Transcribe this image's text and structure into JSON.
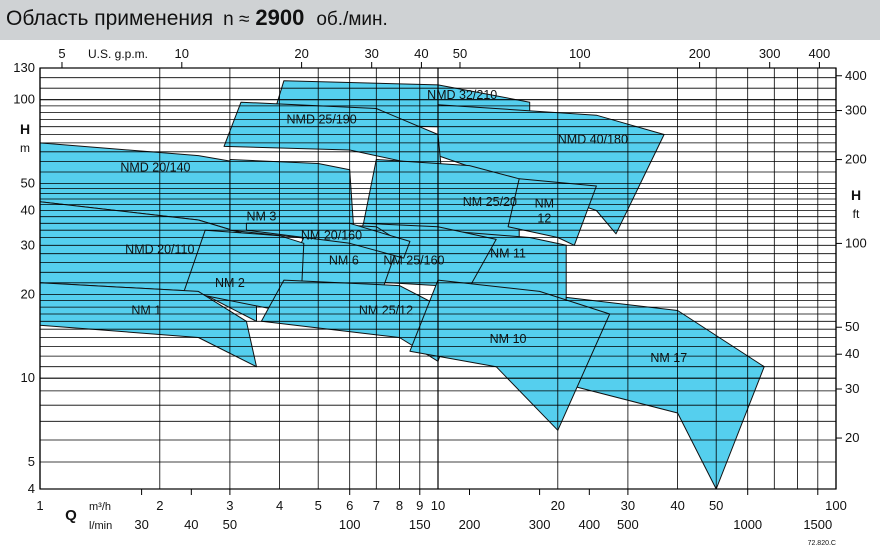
{
  "header": {
    "title": "Область применения",
    "speed_prefix": "n ≈",
    "speed_value": "2900",
    "speed_unit": "об./мин."
  },
  "colors": {
    "field_fill": "#55cfee",
    "field_stroke": "#111111",
    "header_bg": "#cfd2d4",
    "grid": "#000000"
  },
  "chart_data": {
    "type": "area",
    "title": "Область применения n ≈ 2900 об./мин.",
    "x_scale": "log",
    "y_scale": "log",
    "xlim_m3h": [
      1,
      100
    ],
    "ylim_m": [
      4,
      130
    ],
    "grid": true,
    "axes": {
      "bottom_m3h": {
        "label_symbol": "Q",
        "label_unit": "m³/h",
        "ticks": [
          1,
          2,
          3,
          4,
          5,
          6,
          7,
          8,
          9,
          10,
          20,
          30,
          40,
          50,
          100
        ]
      },
      "bottom_lmin": {
        "label_unit": "l/min",
        "ticks": [
          30,
          40,
          50,
          100,
          150,
          200,
          300,
          400,
          500,
          1000,
          1500
        ]
      },
      "top_gpm": {
        "label": "U.S. g.p.m.",
        "ticks": [
          5,
          10,
          20,
          30,
          40,
          50,
          100,
          200,
          300,
          400
        ]
      },
      "left_m": {
        "label_symbol": "H",
        "label_unit": "m",
        "ticks": [
          4,
          5,
          10,
          20,
          30,
          40,
          50,
          100,
          130
        ]
      },
      "right_ft": {
        "label_symbol": "H",
        "label_unit": "ft",
        "ticks": [
          20,
          30,
          40,
          50,
          100,
          200,
          300,
          400
        ]
      }
    },
    "series": [
      {
        "name": "NM 1",
        "label_at": [
          1.85,
          17.5
        ],
        "q_range_m3h": [
          1.0,
          3.5
        ],
        "h_top": [
          [
            1.0,
            22
          ],
          [
            2.5,
            20.5
          ],
          [
            3.3,
            16
          ]
        ],
        "h_bottom": [
          [
            1.0,
            15.5
          ],
          [
            2.5,
            14
          ],
          [
            3.5,
            11
          ]
        ]
      },
      {
        "name": "NM 2",
        "label_at": [
          3.0,
          22
        ],
        "q_range_m3h": [
          2.3,
          4.6
        ],
        "h_top": [
          [
            2.6,
            34
          ],
          [
            4.0,
            32.5
          ],
          [
            4.6,
            30.5
          ]
        ],
        "h_bottom": [
          [
            2.3,
            20.5
          ],
          [
            4.0,
            17.5
          ],
          [
            4.5,
            16
          ]
        ]
      },
      {
        "name": "NM 3",
        "label_at": [
          3.6,
          38
        ],
        "q_range_m3h": [
          3.0,
          6.0
        ],
        "h_top": [
          [
            3.0,
            61
          ],
          [
            5.0,
            59
          ],
          [
            6.0,
            56
          ]
        ],
        "h_bottom": [
          [
            3.0,
            34
          ],
          [
            5.5,
            31
          ],
          [
            6.2,
            28
          ]
        ]
      },
      {
        "name": "NMD 20/110",
        "label_at": [
          2.0,
          29
        ],
        "q_range_m3h": [
          1.0,
          3.5
        ],
        "h_top": [
          [
            1.0,
            43
          ],
          [
            2.5,
            37
          ],
          [
            3.5,
            32
          ]
        ],
        "h_bottom": [
          [
            1.0,
            22
          ],
          [
            2.5,
            20.5
          ],
          [
            3.5,
            16
          ]
        ]
      },
      {
        "name": "NMD 20/140",
        "label_at": [
          1.95,
          57
        ],
        "q_range_m3h": [
          1.0,
          3.5
        ],
        "h_top": [
          [
            1.0,
            70
          ],
          [
            2.5,
            63
          ],
          [
            3.5,
            58
          ]
        ],
        "h_bottom": [
          [
            1.0,
            43
          ],
          [
            2.5,
            37
          ],
          [
            3.5,
            32
          ]
        ]
      },
      {
        "name": "NMD 25/190",
        "label_at": [
          5.1,
          85
        ],
        "q_range_m3h": [
          2.9,
          10.2
        ],
        "h_top": [
          [
            3.2,
            98
          ],
          [
            7.0,
            93
          ],
          [
            10.0,
            75
          ]
        ],
        "h_bottom": [
          [
            2.9,
            68
          ],
          [
            6.0,
            66
          ],
          [
            10.2,
            56
          ]
        ]
      },
      {
        "name": "NMD 32/210",
        "label_at": [
          11.5,
          104
        ],
        "q_range_m3h": [
          4.0,
          17.0
        ],
        "h_top": [
          [
            4.1,
            117
          ],
          [
            10.0,
            113
          ],
          [
            17.0,
            98
          ]
        ],
        "h_bottom": [
          [
            3.8,
            82
          ],
          [
            10.0,
            80
          ],
          [
            17.0,
            72
          ]
        ]
      },
      {
        "name": "NMD 40/180",
        "label_at": [
          24.5,
          72
        ],
        "q_range_m3h": [
          10.0,
          37.0
        ],
        "h_top": [
          [
            10.0,
            96
          ],
          [
            25.0,
            88
          ],
          [
            37.0,
            75
          ]
        ],
        "h_bottom": [
          [
            10.0,
            63
          ],
          [
            25.0,
            40
          ],
          [
            28.0,
            33
          ]
        ]
      },
      {
        "name": "NM 20/160",
        "label_at": [
          5.4,
          32.5
        ],
        "q_range_m3h": [
          3.3,
          8.5
        ],
        "h_top": [
          [
            3.3,
            36
          ],
          [
            6.0,
            36
          ],
          [
            8.5,
            31
          ]
        ],
        "h_bottom": [
          [
            3.3,
            34
          ],
          [
            6.0,
            30.5
          ],
          [
            8.2,
            27
          ]
        ]
      },
      {
        "name": "NM 6",
        "label_at": [
          5.8,
          26.5
        ],
        "q_range_m3h": [
          4.0,
          8.0
        ],
        "h_top": [
          [
            4.8,
            36
          ],
          [
            7.0,
            35
          ],
          [
            8.0,
            31
          ]
        ],
        "h_bottom": [
          [
            4.0,
            21.5
          ],
          [
            6.0,
            20.5
          ],
          [
            7.0,
            18
          ]
        ]
      },
      {
        "name": "NM 25/12",
        "label_at": [
          7.4,
          17.5
        ],
        "q_range_m3h": [
          3.5,
          11.0
        ],
        "h_top": [
          [
            4.1,
            22.5
          ],
          [
            8.0,
            21.5
          ],
          [
            11.0,
            17
          ]
        ],
        "h_bottom": [
          [
            3.6,
            16
          ],
          [
            8.0,
            14
          ],
          [
            10.0,
            11.5
          ]
        ]
      },
      {
        "name": "NM 25/160",
        "label_at": [
          8.7,
          26.5
        ],
        "q_range_m3h": [
          5.8,
          14.0
        ],
        "h_top": [
          [
            6.5,
            36
          ],
          [
            10.0,
            35
          ],
          [
            14.0,
            31.5
          ]
        ],
        "h_bottom": [
          [
            5.8,
            22.5
          ],
          [
            10.0,
            21.5
          ],
          [
            11.0,
            17
          ]
        ]
      },
      {
        "name": "NM 25/20",
        "label_at": [
          13.5,
          43
        ],
        "q_range_m3h": [
          6.5,
          16.0
        ],
        "h_top": [
          [
            7.0,
            61
          ],
          [
            12.0,
            58
          ],
          [
            16.0,
            52
          ]
        ],
        "h_bottom": [
          [
            6.5,
            36
          ],
          [
            12.0,
            33
          ],
          [
            16.0,
            28
          ]
        ]
      },
      {
        "name": "NM 11",
        "label_at": [
          15.0,
          28
        ],
        "q_range_m3h": [
          9.5,
          21.0
        ],
        "h_top": [
          [
            10.0,
            34
          ],
          [
            17.0,
            32
          ],
          [
            21.0,
            30
          ]
        ],
        "h_bottom": [
          [
            9.5,
            22.5
          ],
          [
            16.0,
            20
          ],
          [
            21.0,
            17.5
          ]
        ]
      },
      {
        "name": "NM 12",
        "label_at": [
          18.5,
          40
        ],
        "q_range_m3h": [
          15.0,
          25.0
        ],
        "h_top": [
          [
            16.0,
            52
          ],
          [
            25.0,
            49
          ]
        ],
        "h_bottom": [
          [
            15.0,
            35
          ],
          [
            20.0,
            32
          ],
          [
            22.0,
            30
          ]
        ]
      },
      {
        "name": "NM 10",
        "label_at": [
          15.0,
          13.8
        ],
        "q_range_m3h": [
          8.5,
          27.0
        ],
        "h_top": [
          [
            10.0,
            22.5
          ],
          [
            18.0,
            20.5
          ],
          [
            27.0,
            17
          ]
        ],
        "h_bottom": [
          [
            8.5,
            12.5
          ],
          [
            14.0,
            11
          ],
          [
            20.0,
            6.5
          ]
        ]
      },
      {
        "name": "NM 17",
        "label_at": [
          38.0,
          11.8
        ],
        "q_range_m3h": [
          21.0,
          66.0
        ],
        "h_top": [
          [
            21.0,
            19.5
          ],
          [
            40.0,
            17.5
          ],
          [
            66.0,
            11
          ]
        ],
        "h_bottom": [
          [
            21.0,
            9.5
          ],
          [
            40.0,
            7.5
          ],
          [
            50.0,
            4.0
          ]
        ]
      }
    ],
    "footnote": "72.820.C"
  }
}
